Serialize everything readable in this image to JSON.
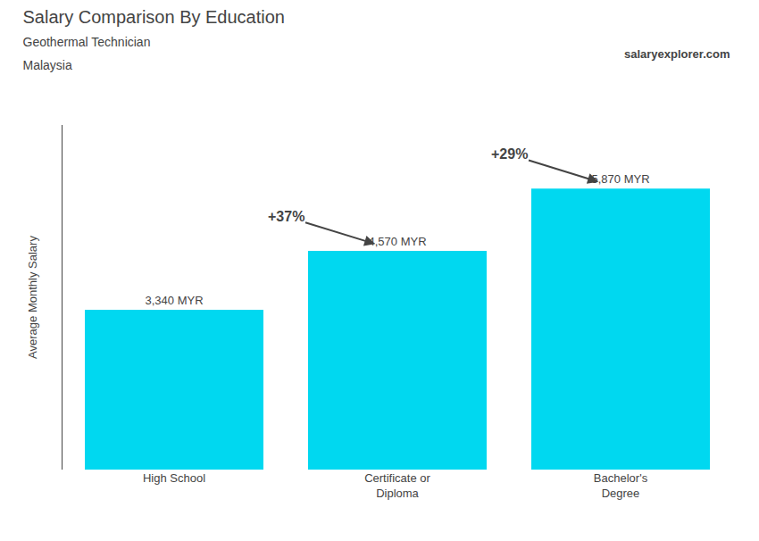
{
  "chart_data": {
    "type": "bar",
    "title": "Salary Comparison By Education",
    "subtitle": [
      "Geothermal Technician",
      "Malaysia"
    ],
    "ylabel": "Average Monthly Salary",
    "categories": [
      "High School",
      "Certificate or\nDiploma",
      "Bachelor's\nDegree"
    ],
    "values": [
      3340,
      4570,
      5870
    ],
    "value_labels": [
      "3,340 MYR",
      "4,570 MYR",
      "5,870 MYR"
    ],
    "data_labels": true,
    "color": "#00d8f0",
    "ylim": [
      0,
      7200
    ],
    "grid": false,
    "tick_labels": "x",
    "annotations": [
      {
        "text": "salaryexplorer.com"
      },
      {
        "text": "+37%",
        "from": "High School",
        "to": "Certificate or\nDiploma"
      },
      {
        "text": "+29%",
        "from": "Certificate or\nDiploma",
        "to": "Bachelor's\nDegree"
      }
    ]
  }
}
